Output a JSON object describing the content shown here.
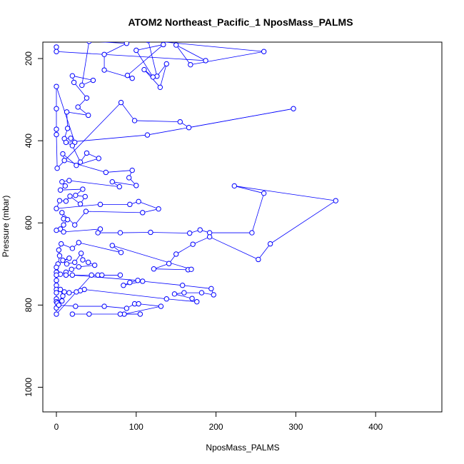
{
  "chart_data": {
    "type": "scatter",
    "title": "ATOM2 Northeast_Pacific_1 NposMass_PALMS",
    "xlabel": "NposMass_PALMS",
    "ylabel": "Pressure (mbar)",
    "xlim": [
      -17,
      483
    ],
    "ylim": [
      1060,
      160
    ],
    "y_reversed": true,
    "x_ticks": [
      0,
      100,
      200,
      300,
      400
    ],
    "y_ticks": [
      200,
      400,
      600,
      800,
      1000
    ],
    "grid": false,
    "legend": "none",
    "colors": {
      "series": "#0000ff",
      "axis": "#000000"
    },
    "series": [
      {
        "points": [
          [
            0,
            172
          ],
          [
            0,
            183
          ],
          [
            187,
            205
          ],
          [
            150,
            167
          ],
          [
            168,
            215
          ],
          [
            260,
            183
          ],
          [
            115,
            156
          ],
          [
            126,
            243
          ],
          [
            138,
            213
          ],
          [
            130,
            270
          ],
          [
            110,
            227
          ],
          [
            121,
            245
          ],
          [
            100,
            180
          ],
          [
            134,
            166
          ],
          [
            89,
            241
          ],
          [
            95,
            248
          ],
          [
            60,
            228
          ],
          [
            60,
            190
          ],
          [
            88,
            163
          ],
          [
            41,
            158
          ],
          [
            32,
            265
          ],
          [
            46,
            253
          ],
          [
            20,
            242
          ],
          [
            22,
            258
          ],
          [
            38,
            296
          ],
          [
            27,
            318
          ],
          [
            40,
            338
          ],
          [
            13,
            330
          ],
          [
            14,
            370
          ],
          [
            10,
            395
          ],
          [
            18,
            394
          ],
          [
            23,
            404
          ],
          [
            0,
            268
          ],
          [
            0,
            322
          ],
          [
            0,
            372
          ],
          [
            0,
            385
          ],
          [
            1,
            467
          ],
          [
            81,
            307
          ],
          [
            98,
            351
          ],
          [
            155,
            354
          ],
          [
            166,
            368
          ],
          [
            297,
            322
          ],
          [
            114,
            386
          ],
          [
            12,
            404
          ],
          [
            20,
            412
          ],
          [
            30,
            452
          ],
          [
            38,
            430
          ],
          [
            53,
            443
          ],
          [
            25,
            460
          ],
          [
            8,
            432
          ],
          [
            10,
            448
          ],
          [
            62,
            477
          ],
          [
            95,
            472
          ],
          [
            91,
            490
          ],
          [
            100,
            509
          ],
          [
            70,
            500
          ],
          [
            79,
            512
          ],
          [
            16,
            497
          ],
          [
            7,
            500
          ],
          [
            11,
            510
          ],
          [
            5,
            520
          ],
          [
            33,
            518
          ],
          [
            24,
            533
          ],
          [
            36,
            536
          ],
          [
            30,
            554
          ],
          [
            17,
            535
          ],
          [
            12,
            547
          ],
          [
            4,
            546
          ],
          [
            0,
            565
          ],
          [
            55,
            555
          ],
          [
            92,
            555
          ],
          [
            103,
            548
          ],
          [
            128,
            566
          ],
          [
            108,
            575
          ],
          [
            37,
            572
          ],
          [
            23,
            605
          ],
          [
            7,
            575
          ],
          [
            9,
            590
          ],
          [
            14,
            592
          ],
          [
            9,
            605
          ],
          [
            5,
            615
          ],
          [
            0,
            618
          ],
          [
            9,
            622
          ],
          [
            55,
            615
          ],
          [
            52,
            624
          ],
          [
            80,
            624
          ],
          [
            118,
            623
          ],
          [
            167,
            625
          ],
          [
            180,
            617
          ],
          [
            192,
            624
          ],
          [
            245,
            624
          ],
          [
            260,
            528
          ],
          [
            223,
            510
          ],
          [
            350,
            546
          ],
          [
            268,
            651
          ],
          [
            253,
            689
          ],
          [
            192,
            634
          ],
          [
            171,
            652
          ],
          [
            150,
            676
          ],
          [
            141,
            699
          ],
          [
            122,
            712
          ],
          [
            165,
            714
          ],
          [
            169,
            713
          ],
          [
            70,
            655
          ],
          [
            81,
            672
          ],
          [
            28,
            648
          ],
          [
            20,
            662
          ],
          [
            6,
            651
          ],
          [
            3,
            666
          ],
          [
            4,
            680
          ],
          [
            2,
            700
          ],
          [
            16,
            686
          ],
          [
            8,
            691
          ],
          [
            13,
            700
          ],
          [
            23,
            696
          ],
          [
            31,
            674
          ],
          [
            33,
            690
          ],
          [
            40,
            696
          ],
          [
            48,
            703
          ],
          [
            28,
            707
          ],
          [
            19,
            713
          ],
          [
            12,
            720
          ],
          [
            5,
            725
          ],
          [
            0,
            708
          ],
          [
            0,
            720
          ],
          [
            0,
            727
          ],
          [
            0,
            740
          ],
          [
            0,
            752
          ],
          [
            0,
            762
          ],
          [
            0,
            770
          ],
          [
            0,
            785
          ],
          [
            0,
            792
          ],
          [
            0,
            807
          ],
          [
            0,
            822
          ],
          [
            44,
            727
          ],
          [
            52,
            727
          ],
          [
            57,
            727
          ],
          [
            80,
            727
          ],
          [
            12,
            727
          ],
          [
            20,
            727
          ],
          [
            102,
            740
          ],
          [
            92,
            745
          ],
          [
            84,
            752
          ],
          [
            108,
            742
          ],
          [
            158,
            752
          ],
          [
            194,
            760
          ],
          [
            197,
            775
          ],
          [
            182,
            770
          ],
          [
            160,
            770
          ],
          [
            148,
            773
          ],
          [
            170,
            784
          ],
          [
            176,
            792
          ],
          [
            138,
            785
          ],
          [
            35,
            762
          ],
          [
            30,
            765
          ],
          [
            25,
            768
          ],
          [
            16,
            770
          ],
          [
            10,
            768
          ],
          [
            5,
            762
          ],
          [
            8,
            778
          ],
          [
            1,
            795
          ],
          [
            7,
            790
          ],
          [
            3,
            800
          ],
          [
            24,
            803
          ],
          [
            60,
            803
          ],
          [
            88,
            808
          ],
          [
            98,
            797
          ],
          [
            103,
            797
          ],
          [
            131,
            803
          ],
          [
            85,
            822
          ],
          [
            105,
            822
          ],
          [
            80,
            822
          ],
          [
            41,
            822
          ],
          [
            20,
            822
          ]
        ]
      }
    ]
  }
}
